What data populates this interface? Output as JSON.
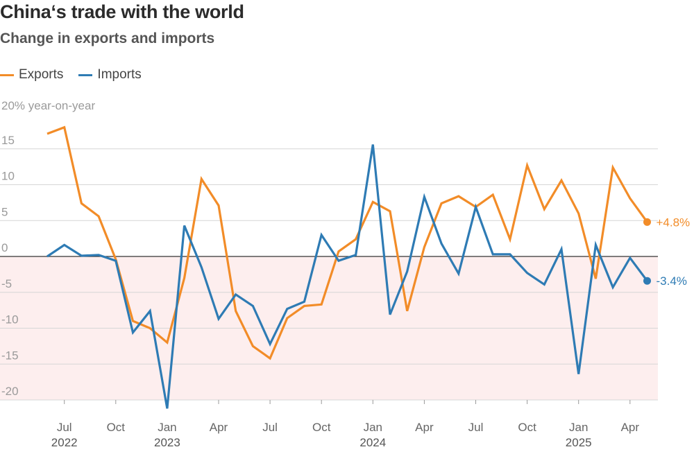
{
  "title": "China‘s trade with the world",
  "subtitle": "Change in exports and imports",
  "colors": {
    "exports": "#f28c28",
    "imports": "#2e7bb4",
    "negative_band": "#fdeeee",
    "grid": "#d6d6d6",
    "zero": "#333333"
  },
  "chart_data": {
    "type": "line",
    "title": "China‘s trade with the world",
    "subtitle": "Change in exports and imports",
    "ylabel": "20% year-on-year",
    "ylim": [
      -20,
      20
    ],
    "y_ticks": [
      15,
      10,
      5,
      0,
      -5,
      -10,
      -15,
      -20
    ],
    "y_tick_labels": [
      "15",
      "10",
      "5",
      "0",
      "-5",
      "-10",
      "-15",
      "-20"
    ],
    "x_ticks": [
      {
        "idx": 1,
        "label": "Jul",
        "year": "2022"
      },
      {
        "idx": 4,
        "label": "Oct",
        "year": ""
      },
      {
        "idx": 7,
        "label": "Jan",
        "year": "2023"
      },
      {
        "idx": 10,
        "label": "Apr",
        "year": ""
      },
      {
        "idx": 13,
        "label": "Jul",
        "year": ""
      },
      {
        "idx": 16,
        "label": "Oct",
        "year": ""
      },
      {
        "idx": 19,
        "label": "Jan",
        "year": "2024"
      },
      {
        "idx": 22,
        "label": "Apr",
        "year": ""
      },
      {
        "idx": 25,
        "label": "Jul",
        "year": ""
      },
      {
        "idx": 28,
        "label": "Oct",
        "year": ""
      },
      {
        "idx": 31,
        "label": "Jan",
        "year": "2025"
      },
      {
        "idx": 34,
        "label": "Apr",
        "year": ""
      }
    ],
    "months": [
      "Jun 2022",
      "Jul 2022",
      "Aug 2022",
      "Sep 2022",
      "Oct 2022",
      "Nov 2022",
      "Dec 2022",
      "Jan 2023",
      "Feb 2023",
      "Mar 2023",
      "Apr 2023",
      "May 2023",
      "Jun 2023",
      "Jul 2023",
      "Aug 2023",
      "Sep 2023",
      "Oct 2023",
      "Nov 2023",
      "Dec 2023",
      "Jan 2024",
      "Feb 2024",
      "Mar 2024",
      "Apr 2024",
      "May 2024",
      "Jun 2024",
      "Jul 2024",
      "Aug 2024",
      "Sep 2024",
      "Oct 2024",
      "Nov 2024",
      "Dec 2024",
      "Jan 2025",
      "Feb 2025",
      "Mar 2025",
      "Apr 2025",
      "May 2025"
    ],
    "legend": [
      "Exports",
      "Imports"
    ],
    "legend_position": "top-left",
    "series": [
      {
        "name": "Exports",
        "color": "#f28c28",
        "end_label": "+4.8%",
        "values": [
          17.1,
          18.0,
          7.4,
          5.6,
          -0.4,
          -9.0,
          -10.0,
          -12.0,
          -3.0,
          10.8,
          7.1,
          -7.6,
          -12.5,
          -14.2,
          -8.6,
          -6.9,
          -6.7,
          0.7,
          2.4,
          7.6,
          6.3,
          -7.6,
          1.3,
          7.4,
          8.4,
          6.9,
          8.6,
          2.4,
          12.7,
          6.6,
          10.6,
          6.0,
          -3.1,
          12.4,
          8.1,
          4.8
        ]
      },
      {
        "name": "Imports",
        "color": "#2e7bb4",
        "end_label": "-3.4%",
        "values": [
          0.0,
          1.6,
          0.1,
          0.2,
          -0.6,
          -10.6,
          -7.6,
          -21.2,
          4.3,
          -1.5,
          -8.7,
          -5.3,
          -6.9,
          -12.2,
          -7.3,
          -6.3,
          3.0,
          -0.6,
          0.2,
          15.6,
          -8.1,
          -2.1,
          8.3,
          1.8,
          -2.4,
          6.9,
          0.3,
          0.3,
          -2.3,
          -3.9,
          1.0,
          -16.4,
          1.6,
          -4.3,
          -0.2,
          -3.4
        ]
      }
    ]
  }
}
